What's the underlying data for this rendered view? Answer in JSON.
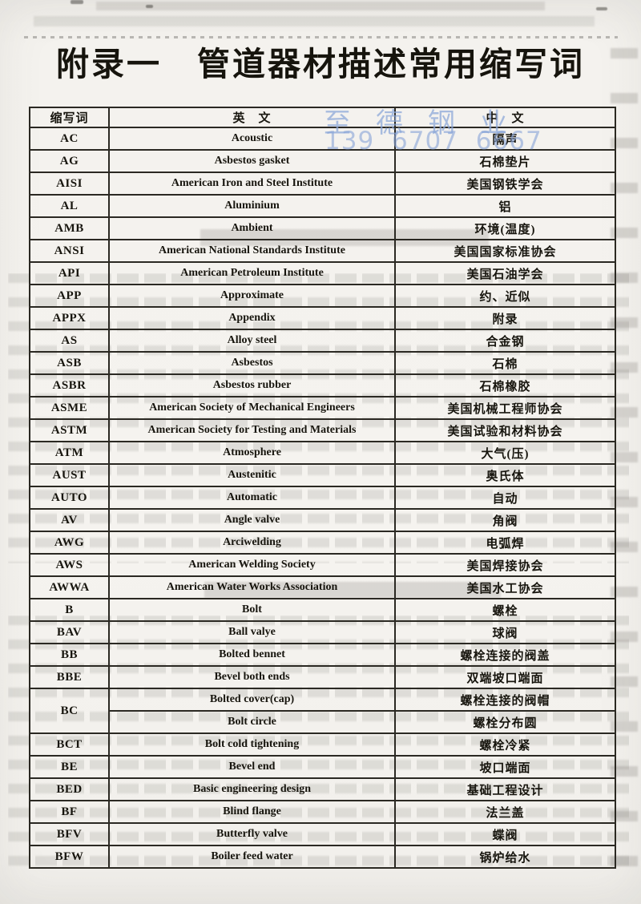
{
  "page": {
    "title": "附录一　管道器材描述常用缩写词"
  },
  "watermark": {
    "line1": "至德钢业",
    "line2": "139 6707 6667"
  },
  "colors": {
    "wm": "#8aa6d9",
    "ink": "#2b2923",
    "paper": "#f3f1ed"
  },
  "table": {
    "headers": [
      "缩写词",
      "英　文",
      "中　文"
    ],
    "rows": [
      {
        "abbr": "AC",
        "en": "Acoustic",
        "zh": "隔声"
      },
      {
        "abbr": "AG",
        "en": "Asbestos gasket",
        "zh": "石棉垫片"
      },
      {
        "abbr": "AISI",
        "en": "American Iron and Steel Institute",
        "zh": "美国钢铁学会"
      },
      {
        "abbr": "AL",
        "en": "Aluminium",
        "zh": "铝"
      },
      {
        "abbr": "AMB",
        "en": "Ambient",
        "zh": "环境(温度)"
      },
      {
        "abbr": "ANSI",
        "en": "American National Standards Institute",
        "zh": "美国国家标准协会"
      },
      {
        "abbr": "API",
        "en": "American Petroleum Institute",
        "zh": "美国石油学会"
      },
      {
        "abbr": "APP",
        "en": "Approximate",
        "zh": "约、近似"
      },
      {
        "abbr": "APPX",
        "en": "Appendix",
        "zh": "附录"
      },
      {
        "abbr": "AS",
        "en": "Alloy steel",
        "zh": "合金钢"
      },
      {
        "abbr": "ASB",
        "en": "Asbestos",
        "zh": "石棉"
      },
      {
        "abbr": "ASBR",
        "en": "Asbestos rubber",
        "zh": "石棉橡胶"
      },
      {
        "abbr": "ASME",
        "en": "American Society of Mechanical Engineers",
        "zh": "美国机械工程师协会"
      },
      {
        "abbr": "ASTM",
        "en": "American Society for Testing and Materials",
        "zh": "美国试验和材料协会"
      },
      {
        "abbr": "ATM",
        "en": "Atmosphere",
        "zh": "大气(压)"
      },
      {
        "abbr": "AUST",
        "en": "Austenitic",
        "zh": "奥氏体"
      },
      {
        "abbr": "AUTO",
        "en": "Automatic",
        "zh": "自动"
      },
      {
        "abbr": "AV",
        "en": "Angle valve",
        "zh": "角阀"
      },
      {
        "abbr": "AWG",
        "en": "Arciwelding",
        "zh": "电弧焊"
      },
      {
        "abbr": "AWS",
        "en": "American Welding Society",
        "zh": "美国焊接协会"
      },
      {
        "abbr": "AWWA",
        "en": "American Water Works Association",
        "zh": "美国水工协会"
      },
      {
        "abbr": "B",
        "en": "Bolt",
        "zh": "螺栓"
      },
      {
        "abbr": "BAV",
        "en": "Ball valye",
        "zh": "球阀"
      },
      {
        "abbr": "BB",
        "en": "Bolted bennet",
        "zh": "螺栓连接的阀盖"
      },
      {
        "abbr": "BBE",
        "en": "Bevel both ends",
        "zh": "双端坡口端面"
      },
      {
        "abbr": "BC",
        "en": "Bolted cover(cap)",
        "zh": "螺栓连接的阀帽",
        "en2": "Bolt circle",
        "zh2": "螺栓分布圆"
      },
      {
        "abbr": "BCT",
        "en": "Bolt cold tightening",
        "zh": "螺栓冷紧"
      },
      {
        "abbr": "BE",
        "en": "Bevel end",
        "zh": "坡口端面"
      },
      {
        "abbr": "BED",
        "en": "Basic engineering design",
        "zh": "基础工程设计"
      },
      {
        "abbr": "BF",
        "en": "Blind flange",
        "zh": "法兰盖"
      },
      {
        "abbr": "BFV",
        "en": "Butterfly valve",
        "zh": "蝶阀"
      },
      {
        "abbr": "BFW",
        "en": "Boiler feed water",
        "zh": "锅炉给水"
      }
    ]
  }
}
